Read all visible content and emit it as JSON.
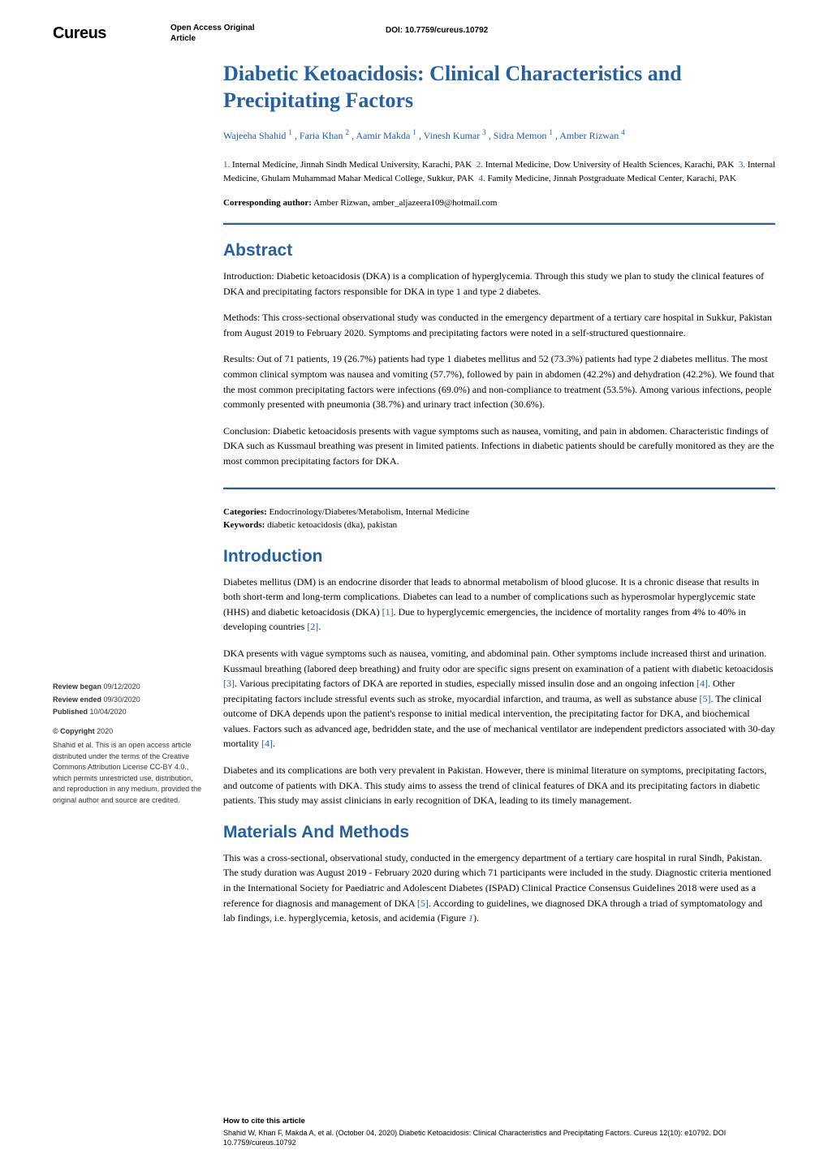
{
  "logo": "Cureus",
  "headerMeta1": "Open Access Original",
  "headerMeta2": "Article",
  "doi": "DOI: 10.7759/cureus.10792",
  "title": "Diabetic Ketoacidosis: Clinical Characteristics and Precipitating Factors",
  "authors": [
    {
      "name": "Wajeeha Shahid",
      "aff": "1"
    },
    {
      "name": "Faria Khan",
      "aff": "2"
    },
    {
      "name": "Aamir Makda",
      "aff": "1"
    },
    {
      "name": "Vinesh Kumar",
      "aff": "3"
    },
    {
      "name": "Sidra Memon",
      "aff": "1"
    },
    {
      "name": "Amber Rizwan",
      "aff": "4"
    }
  ],
  "affiliations": [
    {
      "n": "1.",
      "text": "Internal Medicine, Jinnah Sindh Medical University, Karachi, PAK"
    },
    {
      "n": "2.",
      "text": "Internal Medicine, Dow University of Health Sciences, Karachi, PAK"
    },
    {
      "n": "3.",
      "text": "Internal Medicine, Ghulam Muhammad Mahar Medical College, Sukkur, PAK"
    },
    {
      "n": "4.",
      "text": "Family Medicine, Jinnah Postgraduate Medical Center, Karachi, PAK"
    }
  ],
  "correspondingLabel": "Corresponding author:",
  "correspondingText": "Amber Rizwan, amber_aljazeera109@hotmail.com",
  "abstractHeading": "Abstract",
  "abstract": {
    "p1": "Introduction: Diabetic ketoacidosis (DKA) is a complication of hyperglycemia. Through this study we plan to study the clinical features of DKA and precipitating factors responsible for DKA in type 1 and type 2 diabetes.",
    "p2": "Methods: This cross-sectional observational study was conducted in the emergency department of a tertiary care hospital in Sukkur, Pakistan from August 2019 to February 2020. Symptoms and precipitating factors were noted in a self-structured questionnaire.",
    "p3": "Results: Out of 71 patients, 19 (26.7%) patients had type 1 diabetes mellitus and 52 (73.3%) patients had type 2 diabetes mellitus. The most common clinical symptom was nausea and vomiting (57.7%), followed by pain in abdomen (42.2%) and dehydration (42.2%). We found that the most common precipitating factors were infections (69.0%) and non-compliance to treatment (53.5%). Among various infections, people commonly presented with pneumonia (38.7%) and urinary tract infection (30.6%).",
    "p4": "Conclusion: Diabetic ketoacidosis presents with vague symptoms such as nausea, vomiting, and pain in abdomen. Characteristic findings of DKA such as Kussmaul breathing was present in limited patients. Infections in diabetic patients should be carefully monitored as they are the most common precipitating factors for DKA."
  },
  "categoriesLabel": "Categories:",
  "categories": "Endocrinology/Diabetes/Metabolism, Internal Medicine",
  "keywordsLabel": "Keywords:",
  "keywords": "diabetic ketoacidosis (dka), pakistan",
  "introHeading": "Introduction",
  "intro": {
    "p1a": "Diabetes mellitus (DM) is an endocrine disorder that leads to abnormal metabolism of blood glucose. It is a chronic disease that results in both short-term and long-term complications. Diabetes can lead to a number of complications such as hyperosmolar hyperglycemic state (HHS) and diabetic ketoacidosis (DKA) ",
    "p1b": ". Due to hyperglycemic emergencies, the incidence of mortality ranges from 4% to 40% in developing countries ",
    "p2a": "DKA presents with vague symptoms such as nausea, vomiting, and abdominal pain. Other symptoms include increased thirst and urination. Kussmaul breathing (labored deep breathing) and fruity odor are specific signs present on examination of a patient with diabetic ketoacidosis ",
    "p2b": ". Various precipitating factors of DKA are reported in studies, especially missed insulin dose and an ongoing infection ",
    "p2c": ". Other precipitating factors include stressful events such as stroke, myocardial infarction, and trauma, as well as substance abuse ",
    "p2d": ". The clinical outcome of DKA depends upon the patient's response to initial medical intervention, the precipitating factor for DKA, and biochemical values. Factors such as advanced age, bedridden state, and the use of mechanical ventilator are independent predictors associated with 30-day mortality ",
    "p3": "Diabetes and its complications are both very prevalent in Pakistan. However, there is minimal literature on symptoms, precipitating factors, and outcome of patients with DKA. This study aims to assess the trend of clinical features of DKA and its precipitating factors in diabetic patients. This study may assist clinicians in early recognition of DKA, leading to its timely management."
  },
  "refs": {
    "r1": "[1]",
    "r2": "[2]",
    "r3": "[3]",
    "r4": "[4]",
    "r5": "[5]"
  },
  "methodsHeading": "Materials And Methods",
  "methods": {
    "p1a": "This was a cross-sectional, observational study, conducted in the emergency department of a tertiary care hospital in rural Sindh, Pakistan. The study duration was August 2019 - February 2020 during which 71 participants were included in the study. Diagnostic criteria mentioned in the International Society for Paediatric and Adolescent Diabetes (ISPAD) Clinical Practice Consensus Guidelines 2018 were used as a reference for diagnosis and management of DKA ",
    "p1b": ". According to guidelines, we diagnosed DKA through a triad of symptomatology and lab findings, i.e. hyperglycemia, ketosis, and acidemia (Figure ",
    "fig1": "1",
    "p1c": ")."
  },
  "sidebar": {
    "reviewBeganLabel": "Review began",
    "reviewBegan": "09/12/2020",
    "reviewEndedLabel": "Review ended",
    "reviewEnded": "09/30/2020",
    "publishedLabel": "Published",
    "published": "10/04/2020",
    "copyrightLabel": "© Copyright",
    "copyrightYear": "2020",
    "license": "Shahid et al. This is an open access article distributed under the terms of the Creative Commons Attribution License CC-BY 4.0., which permits unrestricted use, distribution, and reproduction in any medium, provided the original author and source are credited."
  },
  "footer": {
    "howto": "How to cite this article",
    "citation": "Shahid W, Khan F, Makda A, et al. (October 04, 2020) Diabetic Ketoacidosis: Clinical Characteristics and Precipitating Factors. Cureus 12(10): e10792. DOI 10.7759/cureus.10792"
  },
  "colors": {
    "accent": "#2560a3",
    "text": "#000000",
    "muted": "#555555",
    "background": "#ffffff"
  },
  "typography": {
    "title_fontsize": 26,
    "heading_fontsize": 21,
    "body_fontsize": 12,
    "sidebar_fontsize": 9,
    "footer_fontsize": 9
  }
}
